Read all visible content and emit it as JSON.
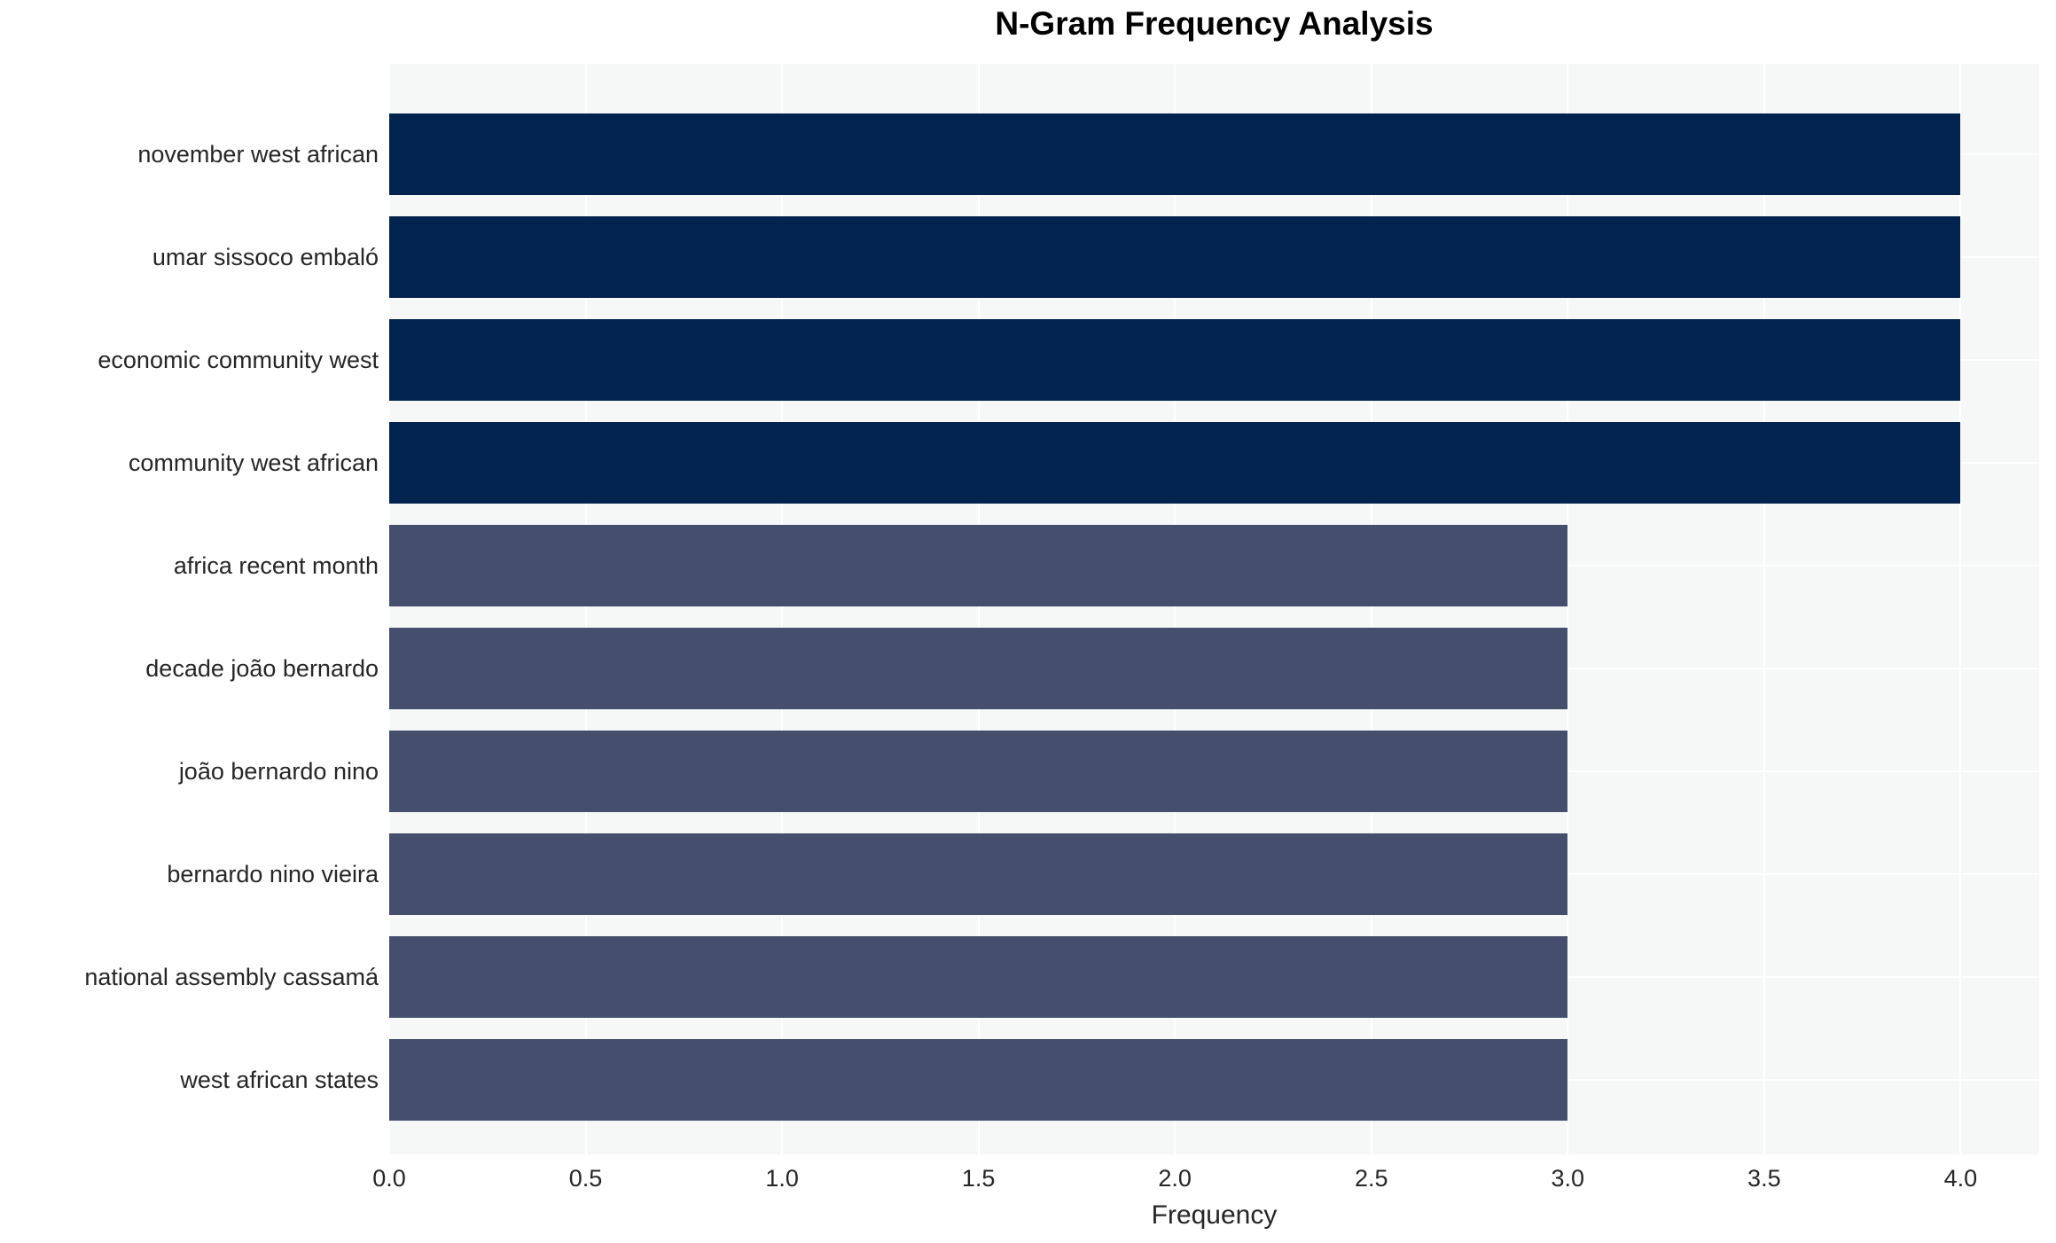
{
  "colors": {
    "figure_bg": "#ffffff",
    "plot_bg": "#f6f7f7",
    "grid": "#ffffff",
    "bar_high": "#02234d",
    "bar_low": "#454e6d",
    "text": "#262626",
    "title_text": "#000000"
  },
  "chart_data": {
    "type": "bar",
    "orientation": "horizontal",
    "title": "N-Gram Frequency Analysis",
    "xlabel": "Frequency",
    "ylabel": "",
    "categories": [
      "november west african",
      "umar sissoco embaló",
      "economic community west",
      "community west african",
      "africa recent month",
      "decade joão bernardo",
      "joão bernardo nino",
      "bernardo nino vieira",
      "national assembly cassamá",
      "west african states"
    ],
    "values": [
      4,
      4,
      4,
      4,
      3,
      3,
      3,
      3,
      3,
      3
    ],
    "bar_colors": [
      "#02234d",
      "#02234d",
      "#02234d",
      "#02234d",
      "#454e6d",
      "#454e6d",
      "#454e6d",
      "#454e6d",
      "#454e6d",
      "#454e6d"
    ],
    "xlim": [
      0,
      4.2
    ],
    "xticks": [
      0,
      0.5,
      1,
      1.5,
      2,
      2.5,
      3,
      3.5,
      4
    ],
    "xtick_labels": [
      "0.0",
      "0.5",
      "1.0",
      "1.5",
      "2.0",
      "2.5",
      "3.0",
      "3.5",
      "4.0"
    ],
    "grid": true,
    "legend": false
  }
}
